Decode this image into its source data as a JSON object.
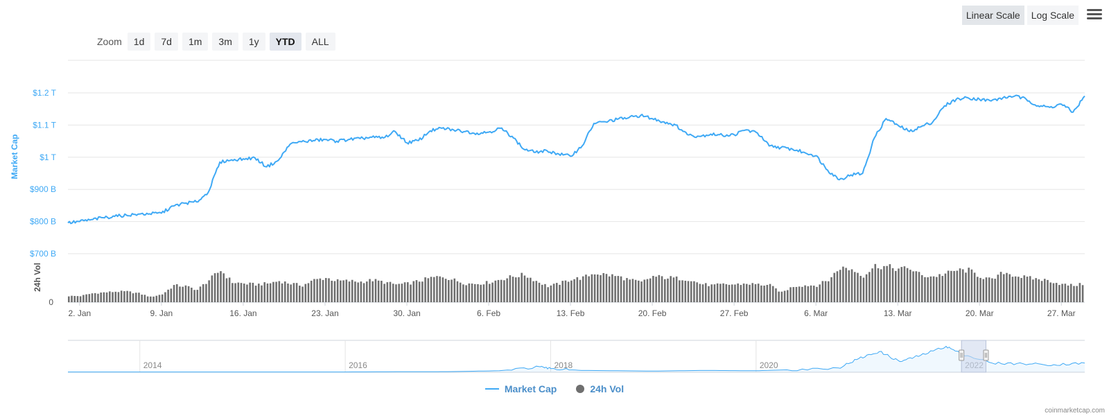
{
  "colors": {
    "market_cap": "#3fa9f5",
    "volume": "#6f6f6f",
    "axis_text": "#3fa9f5",
    "grid": "#e6e6e6",
    "navigator_mask": "#cfd8ec"
  },
  "zoom": {
    "label": "Zoom",
    "buttons": [
      "1d",
      "7d",
      "1m",
      "3m",
      "1y",
      "YTD",
      "ALL"
    ],
    "active": "YTD"
  },
  "scale": {
    "buttons": [
      "Linear Scale",
      "Log Scale"
    ],
    "active": "Linear Scale"
  },
  "menu_icon": "hamburger-menu-icon",
  "legend": [
    "Market Cap",
    "24h Vol"
  ],
  "credits": "coinmarketcap.com",
  "chart_data": [
    {
      "type": "line",
      "ylabel": "Market Cap",
      "ylim": [
        700,
        1200
      ],
      "yunit": "B USD",
      "yticks": [
        700,
        800,
        900,
        1000,
        1100,
        1200
      ],
      "ytick_labels": [
        "$700 B",
        "$800 B",
        "$900 B",
        "$1 T",
        "$1.1 T",
        "$1.2 T"
      ],
      "x_start": "2022-01-01",
      "x_end": "2022-03-29",
      "xtick_labels": [
        "2. Jan",
        "9. Jan",
        "16. Jan",
        "23. Jan",
        "30. Jan",
        "6. Feb",
        "13. Feb",
        "20. Feb",
        "27. Feb",
        "6. Mar",
        "13. Mar",
        "20. Mar",
        "27. Mar"
      ],
      "series": [
        {
          "name": "Market Cap",
          "x": [
            "2022-01-01",
            "2022-01-02",
            "2022-01-03",
            "2022-01-04",
            "2022-01-05",
            "2022-01-06",
            "2022-01-07",
            "2022-01-08",
            "2022-01-09",
            "2022-01-10",
            "2022-01-11",
            "2022-01-12",
            "2022-01-13",
            "2022-01-14",
            "2022-01-15",
            "2022-01-16",
            "2022-01-17",
            "2022-01-18",
            "2022-01-19",
            "2022-01-20",
            "2022-01-21",
            "2022-01-22",
            "2022-01-23",
            "2022-01-24",
            "2022-01-25",
            "2022-01-26",
            "2022-01-27",
            "2022-01-28",
            "2022-01-29",
            "2022-01-30",
            "2022-01-31",
            "2022-02-01",
            "2022-02-02",
            "2022-02-03",
            "2022-02-04",
            "2022-02-05",
            "2022-02-06",
            "2022-02-07",
            "2022-02-08",
            "2022-02-09",
            "2022-02-10",
            "2022-02-11",
            "2022-02-12",
            "2022-02-13",
            "2022-02-14",
            "2022-02-15",
            "2022-02-16",
            "2022-02-17",
            "2022-02-18",
            "2022-02-19",
            "2022-02-20",
            "2022-02-21",
            "2022-02-22",
            "2022-02-23",
            "2022-02-24",
            "2022-02-25",
            "2022-02-26",
            "2022-02-27",
            "2022-02-28",
            "2022-03-01",
            "2022-03-02",
            "2022-03-03",
            "2022-03-04",
            "2022-03-05",
            "2022-03-06",
            "2022-03-07",
            "2022-03-08",
            "2022-03-09",
            "2022-03-10",
            "2022-03-11",
            "2022-03-12",
            "2022-03-13",
            "2022-03-14",
            "2022-03-15",
            "2022-03-16",
            "2022-03-17",
            "2022-03-18",
            "2022-03-19",
            "2022-03-20",
            "2022-03-21",
            "2022-03-22",
            "2022-03-23",
            "2022-03-24",
            "2022-03-25",
            "2022-03-26",
            "2022-03-27",
            "2022-03-28",
            "2022-03-29"
          ],
          "values": [
            796,
            800,
            806,
            812,
            816,
            820,
            823,
            824,
            826,
            848,
            857,
            861,
            890,
            985,
            992,
            995,
            998,
            970,
            990,
            1040,
            1048,
            1052,
            1055,
            1050,
            1055,
            1058,
            1062,
            1060,
            1080,
            1045,
            1052,
            1082,
            1090,
            1085,
            1080,
            1075,
            1078,
            1090,
            1065,
            1025,
            1015,
            1020,
            1010,
            1003,
            1035,
            1105,
            1110,
            1118,
            1123,
            1130,
            1120,
            1110,
            1100,
            1070,
            1065,
            1072,
            1068,
            1070,
            1085,
            1075,
            1035,
            1030,
            1025,
            1015,
            1005,
            960,
            930,
            945,
            950,
            1060,
            1120,
            1100,
            1080,
            1095,
            1110,
            1160,
            1180,
            1185,
            1180,
            1175,
            1185,
            1190,
            1180,
            1160,
            1155,
            1165,
            1140,
            1190
          ]
        },
        {
          "name": "24h Vol",
          "x": [
            "2022-01-01",
            "2022-01-02",
            "2022-01-03",
            "2022-01-04",
            "2022-01-05",
            "2022-01-06",
            "2022-01-07",
            "2022-01-08",
            "2022-01-09",
            "2022-01-10",
            "2022-01-11",
            "2022-01-12",
            "2022-01-13",
            "2022-01-14",
            "2022-01-15",
            "2022-01-16",
            "2022-01-17",
            "2022-01-18",
            "2022-01-19",
            "2022-01-20",
            "2022-01-21",
            "2022-01-22",
            "2022-01-23",
            "2022-01-24",
            "2022-01-25",
            "2022-01-26",
            "2022-01-27",
            "2022-01-28",
            "2022-01-29",
            "2022-01-30",
            "2022-01-31",
            "2022-02-01",
            "2022-02-02",
            "2022-02-03",
            "2022-02-04",
            "2022-02-05",
            "2022-02-06",
            "2022-02-07",
            "2022-02-08",
            "2022-02-09",
            "2022-02-10",
            "2022-02-11",
            "2022-02-12",
            "2022-02-13",
            "2022-02-14",
            "2022-02-15",
            "2022-02-16",
            "2022-02-17",
            "2022-02-18",
            "2022-02-19",
            "2022-02-20",
            "2022-02-21",
            "2022-02-22",
            "2022-02-23",
            "2022-02-24",
            "2022-02-25",
            "2022-02-26",
            "2022-02-27",
            "2022-02-28",
            "2022-03-01",
            "2022-03-02",
            "2022-03-03",
            "2022-03-04",
            "2022-03-05",
            "2022-03-06",
            "2022-03-07",
            "2022-03-08",
            "2022-03-09",
            "2022-03-10",
            "2022-03-11",
            "2022-03-12",
            "2022-03-13",
            "2022-03-14",
            "2022-03-15",
            "2022-03-16",
            "2022-03-17",
            "2022-03-18",
            "2022-03-19",
            "2022-03-20",
            "2022-03-21",
            "2022-03-22",
            "2022-03-23",
            "2022-03-24",
            "2022-03-25",
            "2022-03-26",
            "2022-03-27",
            "2022-03-28",
            "2022-03-29"
          ],
          "values": [
            0.14,
            0.14,
            0.2,
            0.22,
            0.24,
            0.24,
            0.2,
            0.12,
            0.18,
            0.38,
            0.36,
            0.28,
            0.5,
            0.72,
            0.45,
            0.42,
            0.4,
            0.42,
            0.48,
            0.42,
            0.38,
            0.5,
            0.55,
            0.48,
            0.48,
            0.46,
            0.5,
            0.45,
            0.4,
            0.42,
            0.48,
            0.55,
            0.58,
            0.5,
            0.42,
            0.42,
            0.45,
            0.52,
            0.58,
            0.62,
            0.48,
            0.36,
            0.42,
            0.52,
            0.55,
            0.66,
            0.62,
            0.58,
            0.5,
            0.45,
            0.58,
            0.56,
            0.54,
            0.52,
            0.42,
            0.38,
            0.4,
            0.4,
            0.42,
            0.4,
            0.38,
            0.22,
            0.36,
            0.38,
            0.38,
            0.5,
            0.78,
            0.74,
            0.6,
            0.82,
            0.8,
            0.75,
            0.76,
            0.6,
            0.58,
            0.64,
            0.72,
            0.72,
            0.58,
            0.5,
            0.68,
            0.6,
            0.55,
            0.52,
            0.48,
            0.4,
            0.38,
            0.42
          ]
        }
      ]
    },
    {
      "type": "area",
      "xtick_labels": [
        "2014",
        "2016",
        "2018",
        "2020",
        "2022"
      ],
      "x": [
        2013.3,
        2014,
        2015,
        2016,
        2017,
        2017.5,
        2017.9,
        2018,
        2018.3,
        2019,
        2019.5,
        2020,
        2020.3,
        2020.8,
        2021,
        2021.2,
        2021.4,
        2021.6,
        2021.85,
        2022,
        2022.3,
        2022.6,
        2022.9,
        2023.2
      ],
      "values": [
        0.01,
        0.01,
        0.01,
        0.01,
        0.02,
        0.05,
        0.18,
        0.12,
        0.06,
        0.04,
        0.06,
        0.05,
        0.08,
        0.14,
        0.45,
        0.68,
        0.35,
        0.55,
        0.85,
        0.6,
        0.3,
        0.28,
        0.25,
        0.3
      ],
      "selected_range": [
        "2022-01-01",
        "2022-03-29"
      ]
    }
  ]
}
